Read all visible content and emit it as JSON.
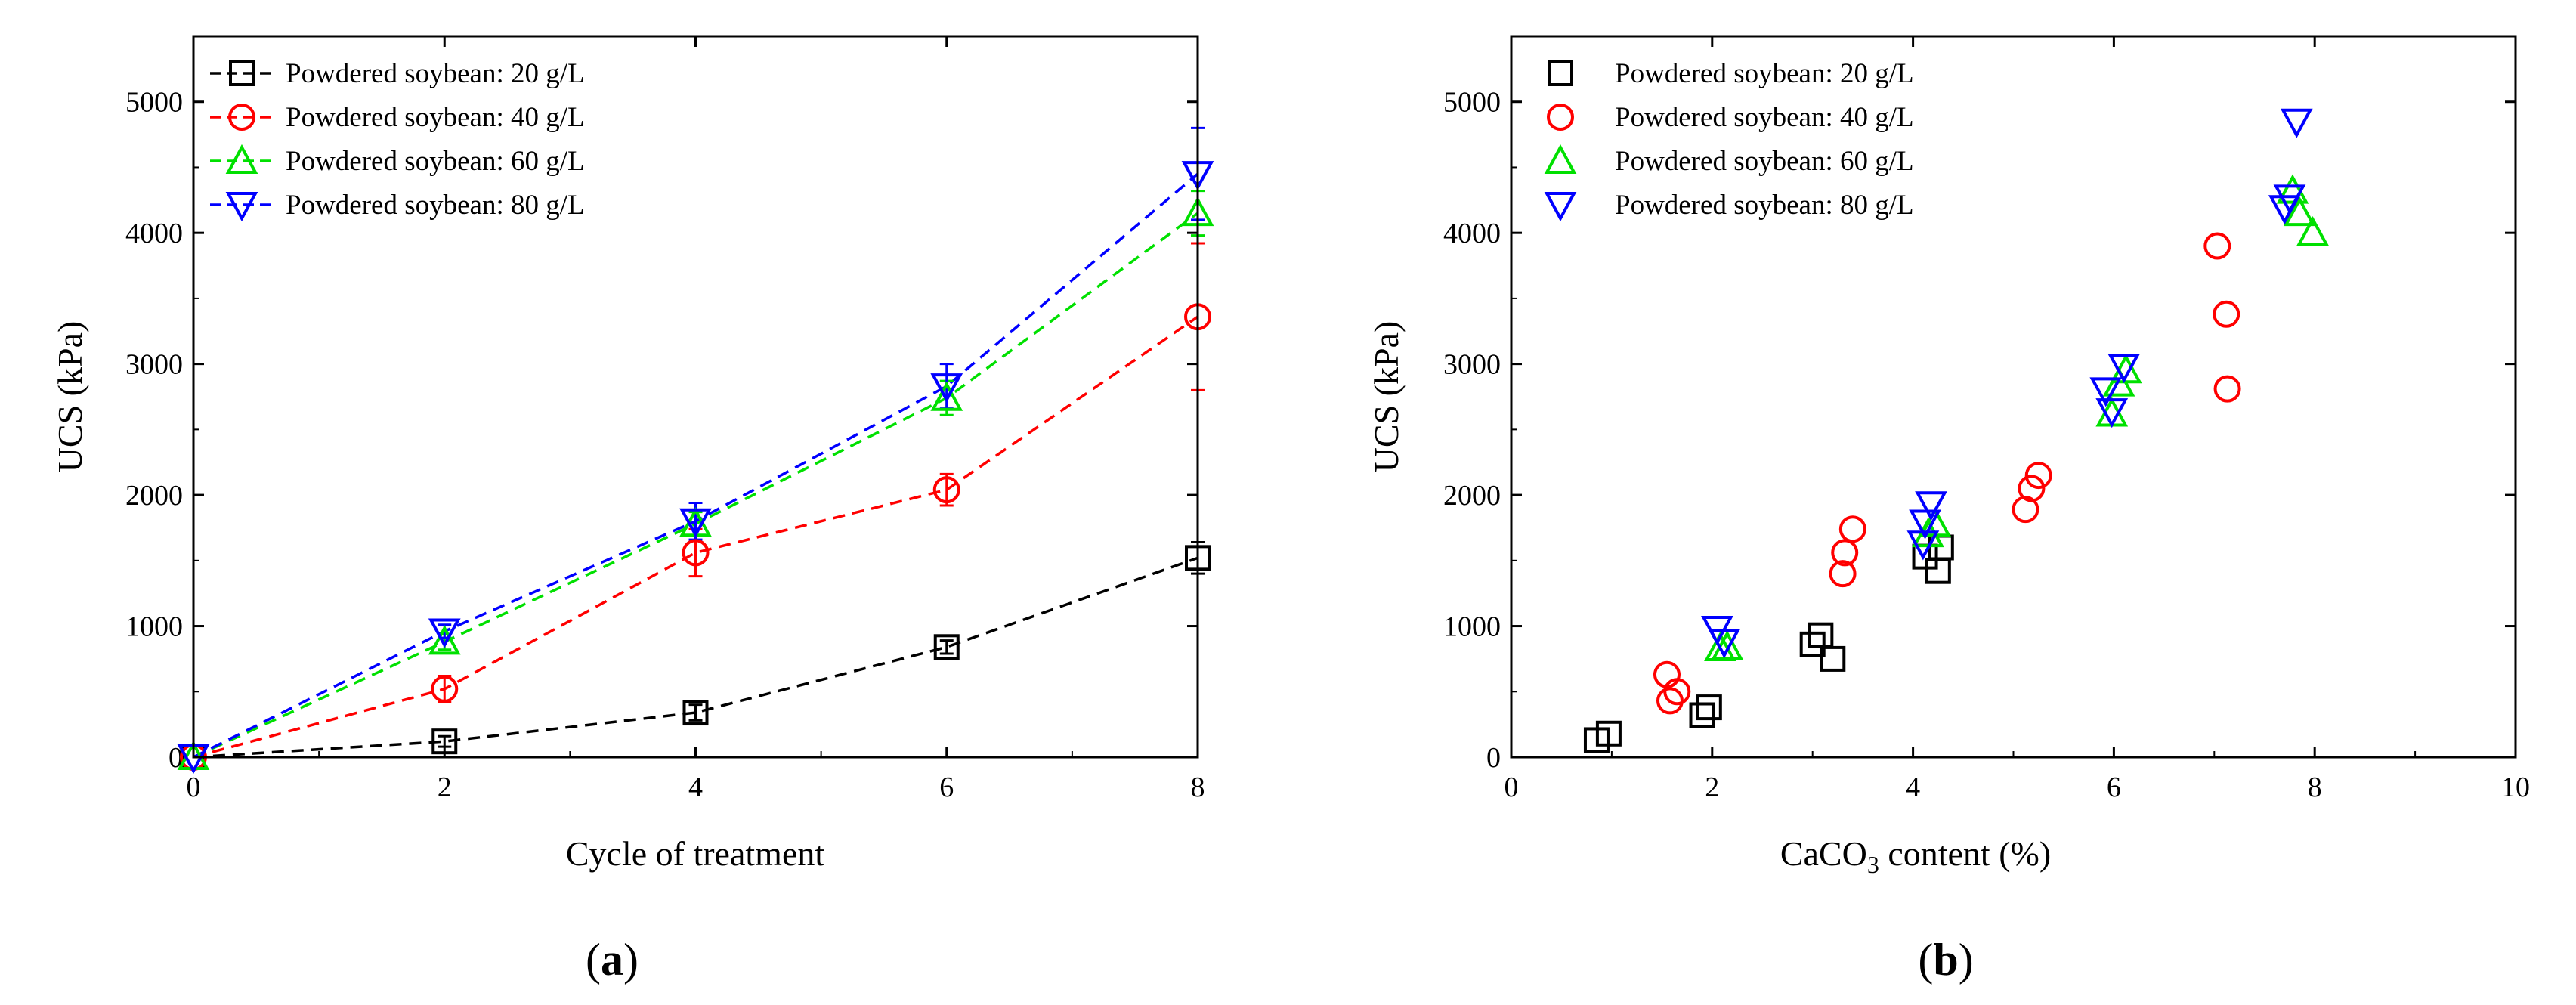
{
  "panels": {
    "a_label": "a",
    "b_label": "b"
  },
  "chart_data": [
    {
      "id": "a",
      "type": "line",
      "xlabel": "Cycle of treatment",
      "ylabel": "UCS (kPa)",
      "xlim": [
        0,
        8
      ],
      "ylim": [
        0,
        5500
      ],
      "xticks": [
        0,
        2,
        4,
        6,
        8
      ],
      "yticks": [
        0,
        1000,
        2000,
        3000,
        4000,
        5000
      ],
      "legend_position": "top-left",
      "series": [
        {
          "name": "Powdered soybean: 20 g/L",
          "marker": "square",
          "color": "#000000",
          "x": [
            0,
            2,
            4,
            6,
            8
          ],
          "y": [
            0,
            120,
            340,
            840,
            1520
          ],
          "err": [
            0,
            40,
            60,
            50,
            120
          ]
        },
        {
          "name": "Powdered soybean: 40 g/L",
          "marker": "circle",
          "color": "#ff0000",
          "x": [
            0,
            2,
            4,
            6,
            8
          ],
          "y": [
            0,
            520,
            1560,
            2040,
            3360
          ],
          "err": [
            0,
            100,
            180,
            120,
            560
          ]
        },
        {
          "name": "Powdered soybean: 60 g/L",
          "marker": "triangle-up",
          "color": "#00e000",
          "x": [
            0,
            2,
            4,
            6,
            8
          ],
          "y": [
            0,
            880,
            1780,
            2740,
            4150
          ],
          "err": [
            0,
            60,
            90,
            130,
            170
          ]
        },
        {
          "name": "Powdered soybean: 80 g/L",
          "marker": "triangle-down",
          "color": "#0000ff",
          "x": [
            0,
            2,
            4,
            6,
            8
          ],
          "y": [
            0,
            960,
            1800,
            2830,
            4450
          ],
          "err": [
            0,
            50,
            140,
            170,
            350
          ]
        }
      ]
    },
    {
      "id": "b",
      "type": "scatter",
      "xlabel_prefix": "CaCO",
      "xlabel_sub": "3",
      "xlabel_suffix": " content (%)",
      "ylabel": "UCS (kPa)",
      "xlim": [
        0,
        10
      ],
      "ylim": [
        0,
        5500
      ],
      "xticks": [
        0,
        2,
        4,
        6,
        8,
        10
      ],
      "yticks": [
        0,
        1000,
        2000,
        3000,
        4000,
        5000
      ],
      "legend_position": "top-left",
      "series": [
        {
          "name": "Powdered soybean: 20 g/L",
          "marker": "square",
          "color": "#000000",
          "points": [
            [
              0.85,
              130
            ],
            [
              0.97,
              180
            ],
            [
              1.9,
              320
            ],
            [
              1.97,
              380
            ],
            [
              3.0,
              860
            ],
            [
              3.08,
              930
            ],
            [
              3.2,
              750
            ],
            [
              4.12,
              1530
            ],
            [
              4.25,
              1420
            ],
            [
              4.28,
              1600
            ]
          ]
        },
        {
          "name": "Powdered soybean: 40 g/L",
          "marker": "circle",
          "color": "#ff0000",
          "points": [
            [
              1.55,
              630
            ],
            [
              1.58,
              430
            ],
            [
              1.65,
              500
            ],
            [
              3.3,
              1400
            ],
            [
              3.32,
              1560
            ],
            [
              3.4,
              1740
            ],
            [
              5.12,
              1890
            ],
            [
              5.18,
              2050
            ],
            [
              5.25,
              2150
            ],
            [
              7.03,
              3900
            ],
            [
              7.12,
              3380
            ],
            [
              7.13,
              2810
            ]
          ]
        },
        {
          "name": "Powdered soybean: 60 g/L",
          "marker": "triangle-up",
          "color": "#00e000",
          "points": [
            [
              2.08,
              830
            ],
            [
              2.15,
              840
            ],
            [
              4.15,
              1700
            ],
            [
              4.22,
              1780
            ],
            [
              5.98,
              2620
            ],
            [
              6.05,
              2850
            ],
            [
              6.12,
              2950
            ],
            [
              7.78,
              4320
            ],
            [
              7.85,
              4150
            ],
            [
              7.98,
              4000
            ]
          ]
        },
        {
          "name": "Powdered soybean: 80 g/L",
          "marker": "triangle-down",
          "color": "#0000ff",
          "points": [
            [
              2.05,
              980
            ],
            [
              2.12,
              880
            ],
            [
              4.1,
              1630
            ],
            [
              4.12,
              1790
            ],
            [
              4.18,
              1930
            ],
            [
              5.92,
              2800
            ],
            [
              5.98,
              2640
            ],
            [
              6.1,
              2980
            ],
            [
              7.7,
              4190
            ],
            [
              7.75,
              4270
            ],
            [
              7.82,
              4850
            ]
          ]
        }
      ]
    }
  ]
}
